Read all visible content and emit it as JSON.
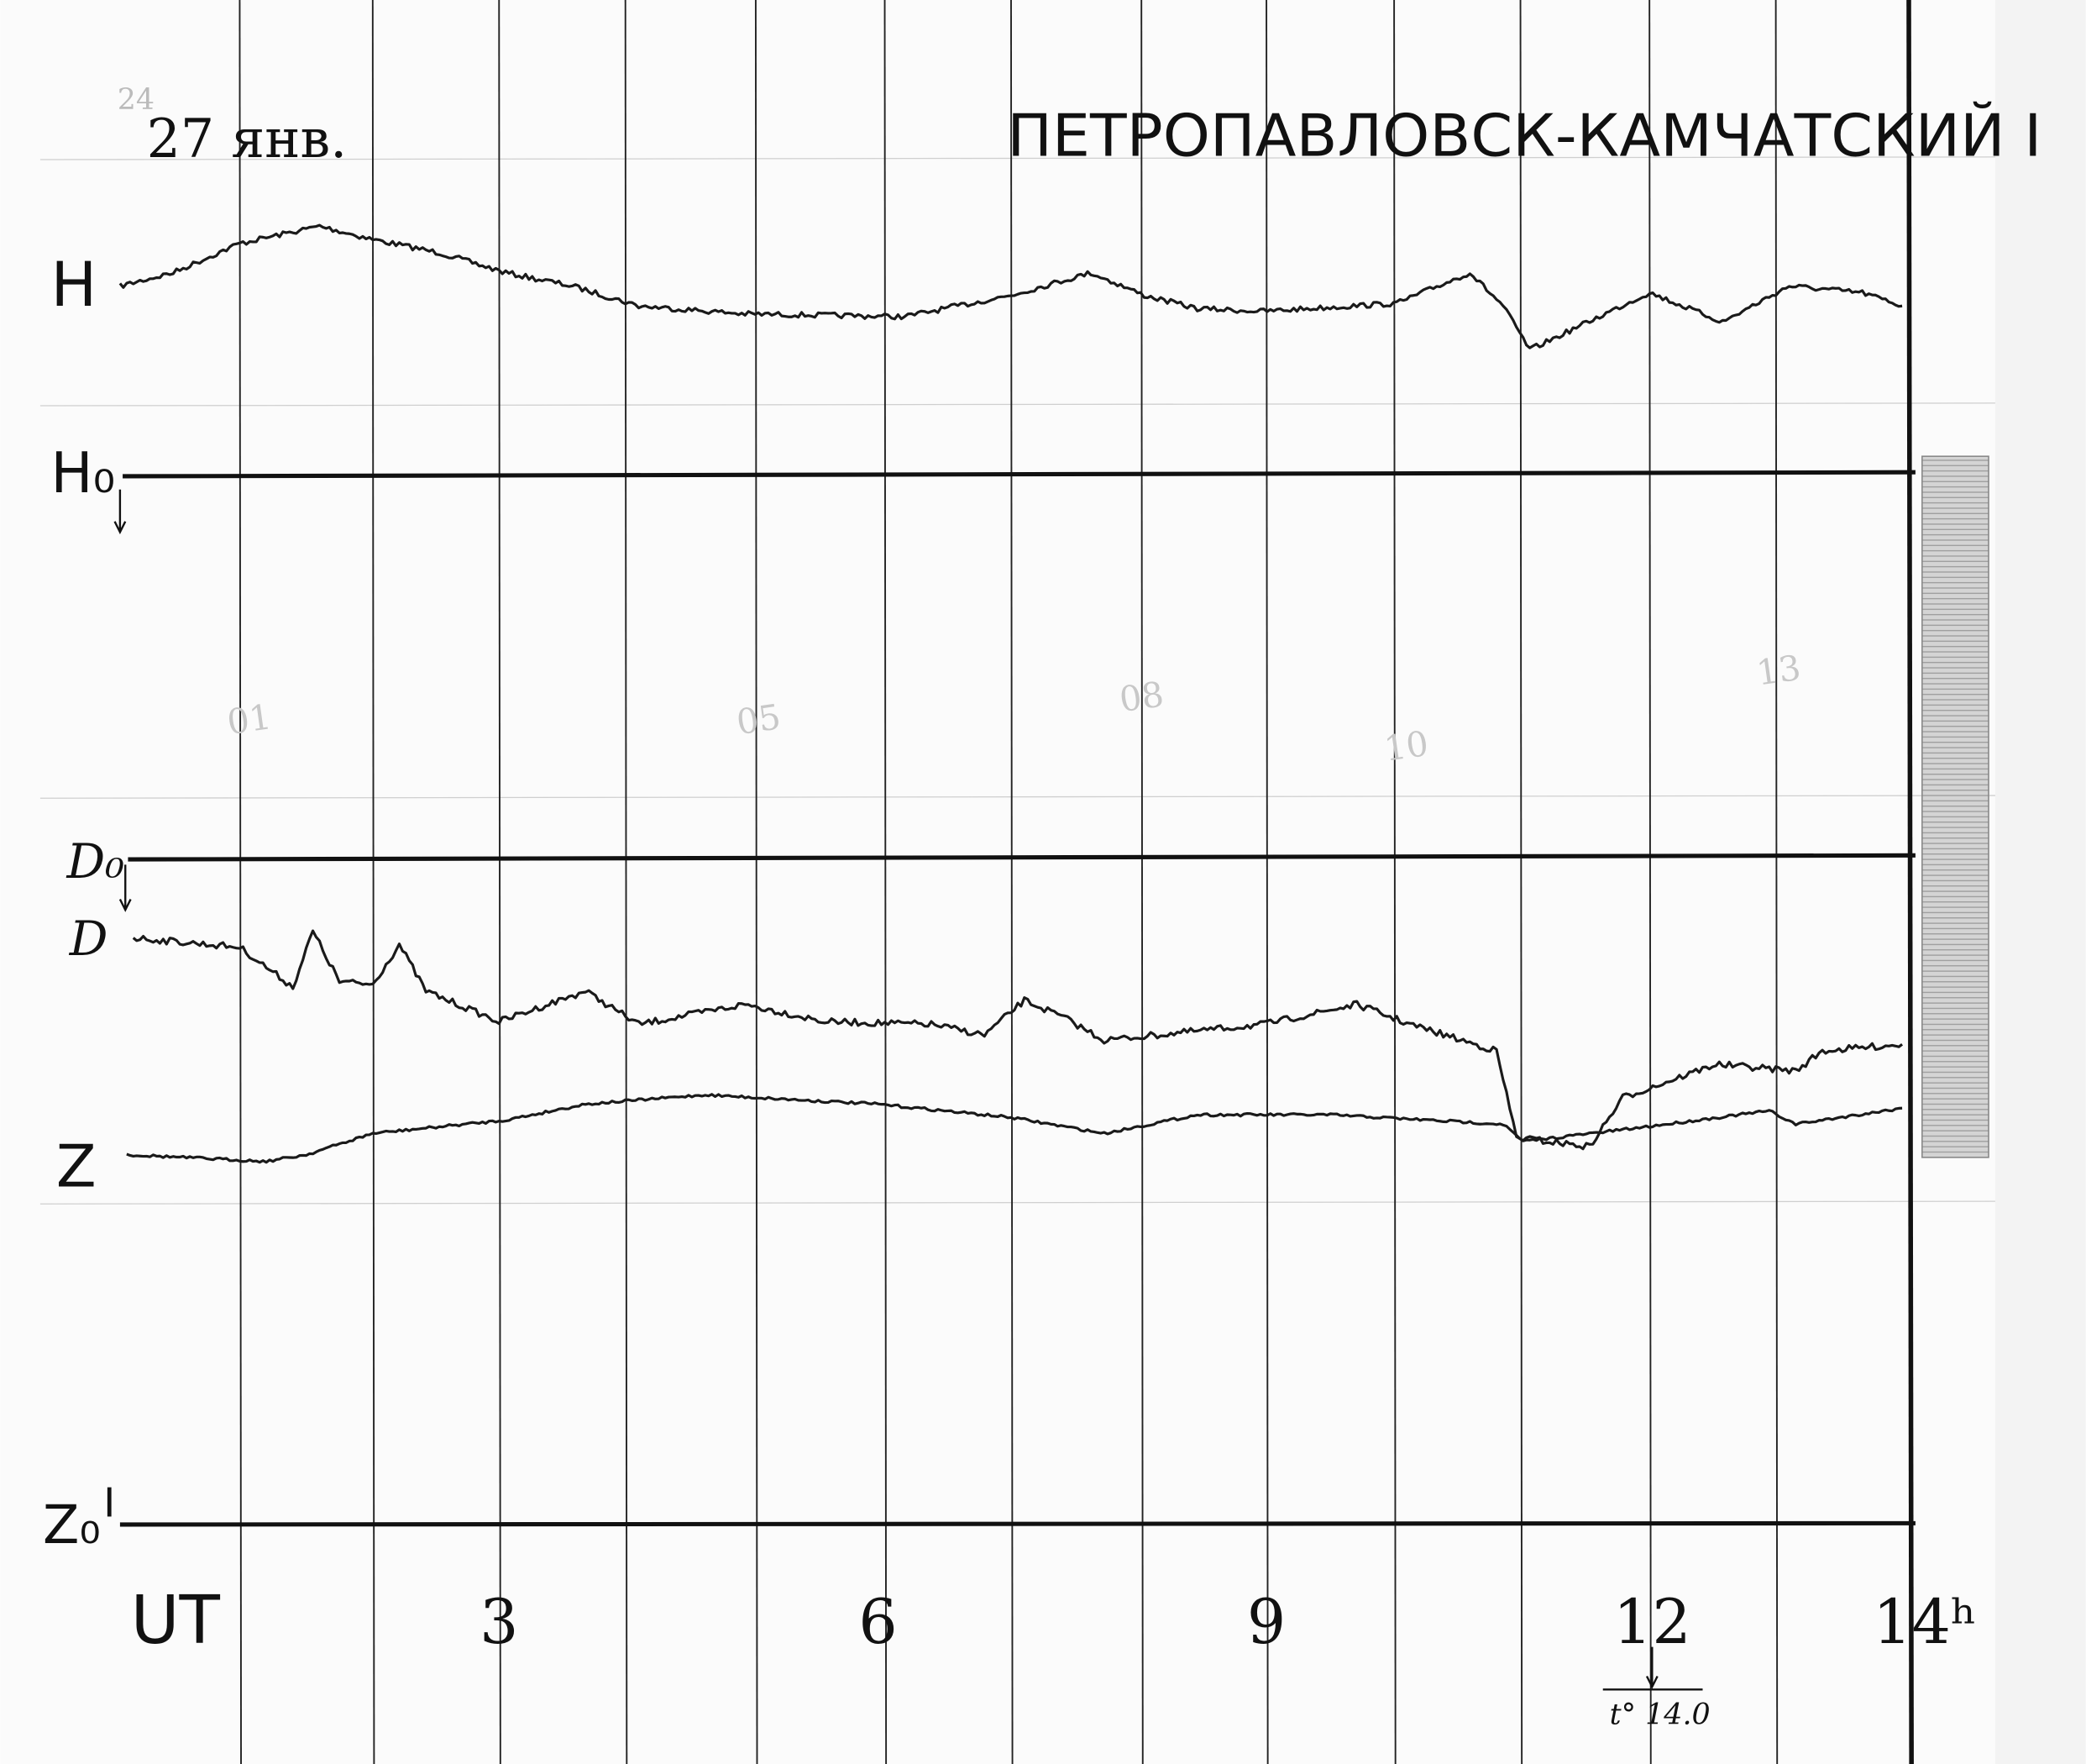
{
  "header": {
    "note": "24",
    "date": "27 янв.",
    "station": "ПЕТРОПАВЛОВСК-КАМЧАТСКИЙ I"
  },
  "traces": [
    {
      "label": "H"
    },
    {
      "label": "H₀"
    },
    {
      "label": "D₀"
    },
    {
      "label": "D"
    },
    {
      "label": "Z"
    },
    {
      "label": "Z₀"
    }
  ],
  "time_axis": {
    "labels": [
      "UT",
      "3",
      "6",
      "9",
      "12",
      "14ʰ"
    ]
  },
  "pencil_marks": [
    "01",
    "05",
    "08",
    "10",
    "13"
  ],
  "temperature": "t° 14.0"
}
